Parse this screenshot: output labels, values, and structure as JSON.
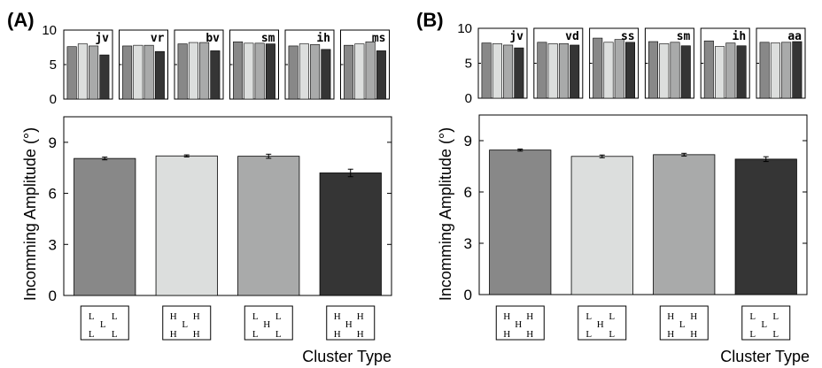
{
  "panels": [
    {
      "letter": "(A)",
      "ylabel": "Incomming Amplitude (°)",
      "xlabel": "Cluster Type",
      "main_chart": {
        "type": "bar",
        "ylim": [
          0,
          10.5
        ],
        "yticks": [
          0,
          3,
          6,
          9
        ],
        "values": [
          8.05,
          8.2,
          8.18,
          7.2
        ],
        "errors": [
          0.08,
          0.06,
          0.12,
          0.22
        ],
        "colors": [
          "#888888",
          "#dcdedd",
          "#a9aaaa",
          "#353535"
        ],
        "cluster_icons": [
          [
            "L",
            "L",
            "L",
            "L",
            "L"
          ],
          [
            "H",
            "H",
            "L",
            "H",
            "H"
          ],
          [
            "L",
            "L",
            "H",
            "L",
            "L"
          ],
          [
            "H",
            "H",
            "H",
            "H",
            "H"
          ]
        ]
      },
      "subjects": [
        {
          "name": "jv",
          "values": [
            7.6,
            8.0,
            7.7,
            6.4
          ]
        },
        {
          "name": "vr",
          "values": [
            7.7,
            7.8,
            7.8,
            6.9
          ]
        },
        {
          "name": "bv",
          "values": [
            8.0,
            8.2,
            8.2,
            7.0
          ]
        },
        {
          "name": "sm",
          "values": [
            8.3,
            8.1,
            8.1,
            8.0
          ]
        },
        {
          "name": "ih",
          "values": [
            7.7,
            8.0,
            7.9,
            7.2
          ]
        },
        {
          "name": "ms",
          "values": [
            7.8,
            8.0,
            8.3,
            7.0
          ]
        }
      ],
      "subject_ylim": [
        0,
        10
      ],
      "subject_yticks": [
        0,
        5,
        10
      ]
    },
    {
      "letter": "(B)",
      "ylabel": "Incomming Amplitude (°)",
      "xlabel": "Cluster Type",
      "main_chart": {
        "type": "bar",
        "ylim": [
          0,
          10.5
        ],
        "yticks": [
          0,
          3,
          6,
          9
        ],
        "values": [
          8.45,
          8.08,
          8.18,
          7.92
        ],
        "errors": [
          0.06,
          0.08,
          0.08,
          0.14
        ],
        "colors": [
          "#888888",
          "#dcdedd",
          "#a9aaaa",
          "#353535"
        ],
        "cluster_icons": [
          [
            "H",
            "H",
            "H",
            "H",
            "H"
          ],
          [
            "L",
            "L",
            "H",
            "L",
            "L"
          ],
          [
            "H",
            "H",
            "L",
            "H",
            "H"
          ],
          [
            "L",
            "L",
            "L",
            "L",
            "L"
          ]
        ]
      },
      "subjects": [
        {
          "name": "jv",
          "values": [
            7.9,
            7.8,
            7.6,
            7.2
          ]
        },
        {
          "name": "vd",
          "values": [
            8.0,
            7.8,
            7.8,
            7.6
          ]
        },
        {
          "name": "ss",
          "values": [
            8.6,
            8.0,
            8.4,
            8.0
          ]
        },
        {
          "name": "sm",
          "values": [
            8.1,
            7.8,
            8.0,
            7.5
          ]
        },
        {
          "name": "ih",
          "values": [
            8.2,
            7.4,
            7.9,
            7.5
          ]
        },
        {
          "name": "aa",
          "values": [
            8.0,
            7.9,
            8.0,
            8.1
          ]
        }
      ],
      "subject_ylim": [
        0,
        10
      ],
      "subject_yticks": [
        0,
        5,
        10
      ]
    }
  ]
}
